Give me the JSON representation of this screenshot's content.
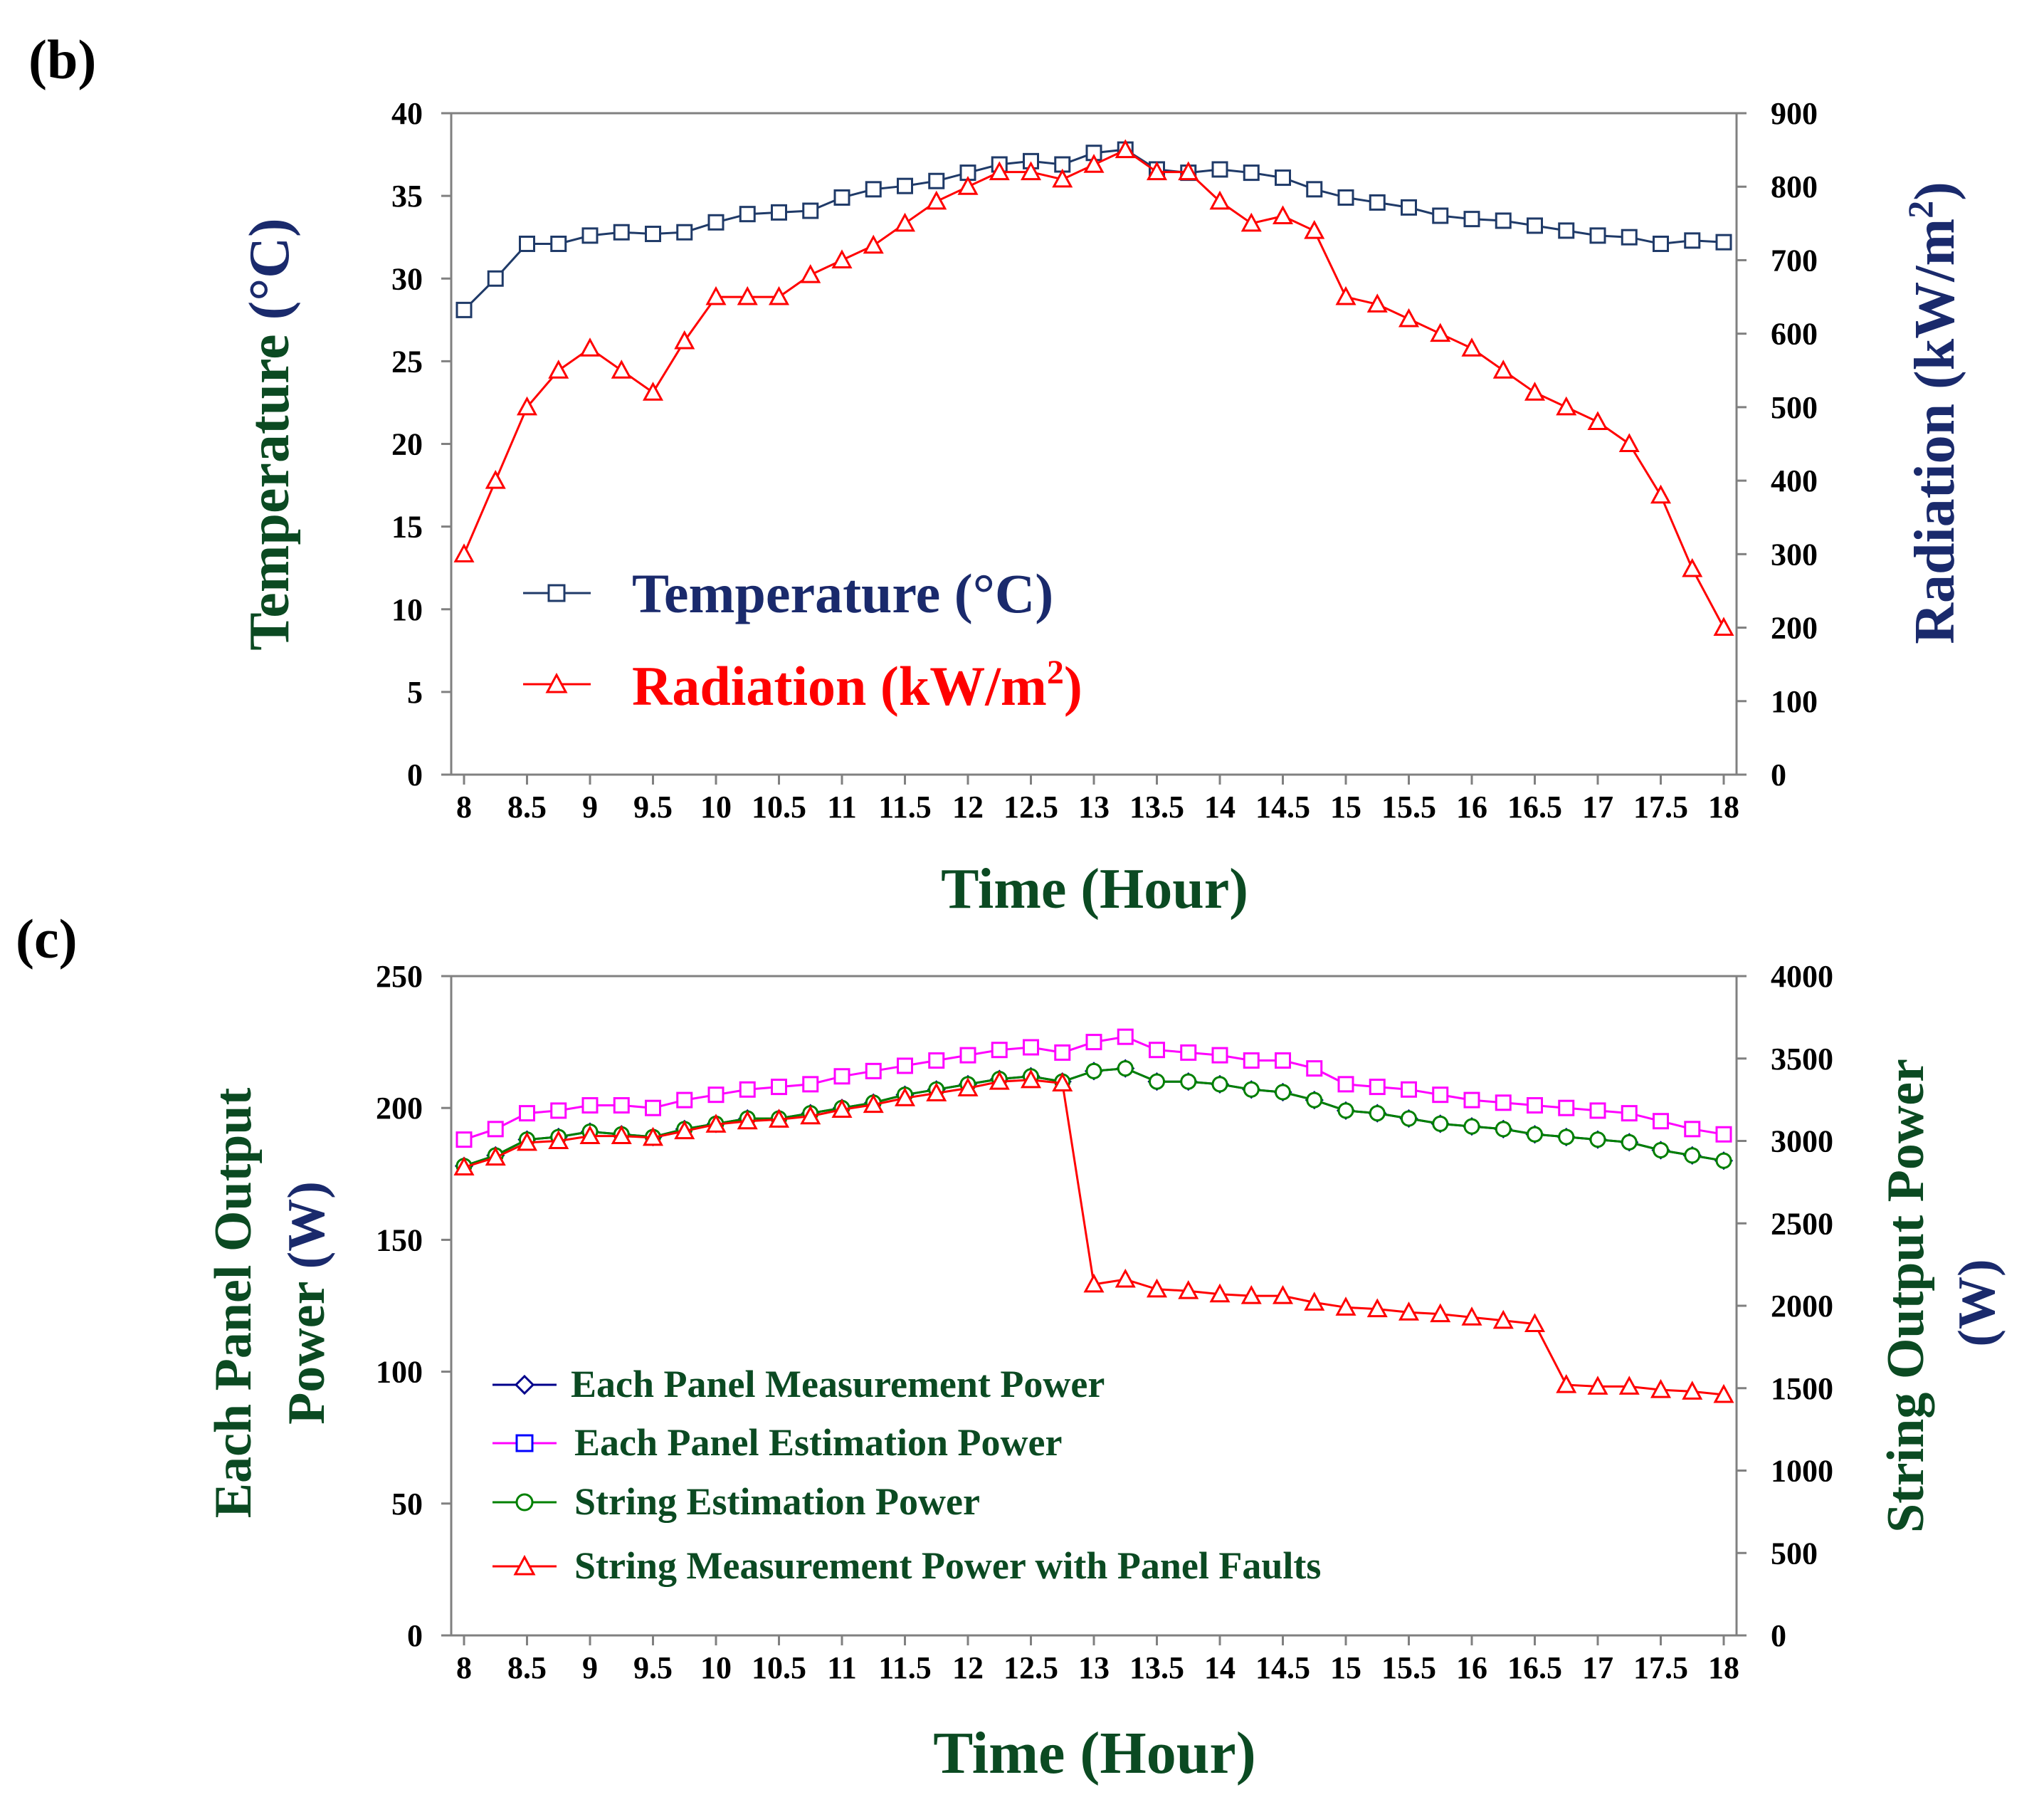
{
  "figure": {
    "colors": {
      "dark_green": "#0b4a22",
      "navy": "#1a2a6c",
      "red": "#ff0000",
      "magenta": "#ff00ff",
      "green": "#008000",
      "blue": "#00008b",
      "temp_navy": "#1f3a68"
    }
  },
  "chart_data": [
    {
      "panel_label": "(b)",
      "type": "line",
      "xlabel": "Time (Hour)",
      "x_tick_labels": [
        "8",
        "8.5",
        "9",
        "9.5",
        "10",
        "10.5",
        "11",
        "11.5",
        "12",
        "12.5",
        "13",
        "13.5",
        "14",
        "14.5",
        "15",
        "15.5",
        "16",
        "16.5",
        "17",
        "17.5",
        "18"
      ],
      "ylabel_left": "Temperature",
      "ylabel_left_unit": "(°C)",
      "ylabel_right": "Radiation",
      "ylabel_right_unit": "(kW/m",
      "ylabel_right_sup": "2",
      "ylabel_right_close": ")",
      "ylim_left": [
        0,
        40
      ],
      "yticks_left": [
        "0",
        "5",
        "10",
        "15",
        "20",
        "25",
        "30",
        "35",
        "40"
      ],
      "ylim_right": [
        0,
        900
      ],
      "yticks_right": [
        "0",
        "100",
        "200",
        "300",
        "400",
        "500",
        "600",
        "700",
        "800",
        "900"
      ],
      "legend": [
        {
          "name": "Temperature",
          "unit": "(°C)",
          "marker": "square",
          "color_key": "navy"
        },
        {
          "name": "Radiation",
          "unit": "(kW/m",
          "sup": "2",
          "close": ")",
          "marker": "triangle",
          "color_key": "red"
        }
      ],
      "series": [
        {
          "name": "Temperature (°C)",
          "axis": "left",
          "marker": "square",
          "color": "#1f3a68",
          "values": [
            28.1,
            30.0,
            32.1,
            32.1,
            32.6,
            32.8,
            32.7,
            32.8,
            33.4,
            33.9,
            34.0,
            34.1,
            34.9,
            35.4,
            35.6,
            35.9,
            36.4,
            36.9,
            37.1,
            36.9,
            37.6,
            37.8,
            36.6,
            36.4,
            36.6,
            36.4,
            36.1,
            35.4,
            34.9,
            34.6,
            34.3,
            33.8,
            33.6,
            33.5,
            33.2,
            32.9,
            32.6,
            32.5,
            32.1,
            32.3,
            32.2
          ]
        },
        {
          "name": "Radiation (kW/m2)",
          "axis": "right",
          "marker": "triangle",
          "color": "#ff0000",
          "values": [
            300,
            400,
            500,
            550,
            580,
            550,
            520,
            590,
            650,
            650,
            650,
            680,
            700,
            720,
            750,
            780,
            800,
            820,
            820,
            810,
            830,
            850,
            820,
            820,
            780,
            750,
            760,
            740,
            650,
            640,
            620,
            600,
            580,
            550,
            520,
            500,
            480,
            450,
            380,
            280,
            200
          ]
        }
      ]
    },
    {
      "panel_label": "(c)",
      "type": "line",
      "xlabel": "Time (Hour)",
      "x_tick_labels": [
        "8",
        "8.5",
        "9",
        "9.5",
        "10",
        "10.5",
        "11",
        "11.5",
        "12",
        "12.5",
        "13",
        "13.5",
        "14",
        "14.5",
        "15",
        "15.5",
        "16",
        "16.5",
        "17",
        "17.5",
        "18"
      ],
      "ylabel_left_line1": "Each Panel Output",
      "ylabel_left_line2a": "Power",
      "ylabel_left_line2b": "(W)",
      "ylabel_right_line1": "String Output Power",
      "ylabel_right_line2": "(W)",
      "ylim_left": [
        0,
        250
      ],
      "yticks_left": [
        "0",
        "50",
        "100",
        "150",
        "200",
        "250"
      ],
      "ylim_right": [
        0,
        4000
      ],
      "yticks_right": [
        "0",
        "500",
        "1000",
        "1500",
        "2000",
        "2500",
        "3000",
        "3500",
        "4000"
      ],
      "legend": [
        {
          "name": "Each Panel Measurement Power",
          "marker": "diamond",
          "color_key": "blue"
        },
        {
          "name": "Each Panel Estimation Power",
          "marker": "square",
          "color_key": "magenta"
        },
        {
          "name": "String Estimation Power",
          "marker": "circle",
          "color_key": "green"
        },
        {
          "name": "String Measurement Power with Panel Faults",
          "marker": "triangle",
          "color_key": "red"
        }
      ],
      "series": [
        {
          "name": "Each Panel Measurement Power",
          "axis": "left",
          "marker": "diamond",
          "color": "#00008b",
          "values": [
            178,
            182,
            188,
            189,
            191,
            190,
            189,
            192,
            194,
            196,
            196,
            198,
            200,
            202,
            205,
            207,
            209,
            211,
            212,
            210,
            214,
            215,
            210,
            210,
            209,
            207,
            206,
            203,
            199,
            198,
            196,
            194,
            193,
            192,
            190,
            189,
            188,
            187,
            184,
            182,
            180
          ]
        },
        {
          "name": "Each Panel Estimation Power",
          "axis": "left",
          "marker": "square",
          "color": "#ff00ff",
          "values": [
            188,
            192,
            198,
            199,
            201,
            201,
            200,
            203,
            205,
            207,
            208,
            209,
            212,
            214,
            216,
            218,
            220,
            222,
            223,
            221,
            225,
            227,
            222,
            221,
            220,
            218,
            218,
            215,
            209,
            208,
            207,
            205,
            203,
            202,
            201,
            200,
            199,
            198,
            195,
            192,
            190
          ]
        },
        {
          "name": "String Estimation Power",
          "axis": "left",
          "marker": "circle",
          "color": "#008000",
          "values": [
            178,
            182,
            188,
            189,
            191,
            190,
            189,
            192,
            194,
            196,
            196,
            198,
            200,
            202,
            205,
            207,
            209,
            211,
            212,
            210,
            214,
            215,
            210,
            210,
            209,
            207,
            206,
            203,
            199,
            198,
            196,
            194,
            193,
            192,
            190,
            189,
            188,
            187,
            184,
            182,
            180
          ]
        },
        {
          "name": "String Measurement Power with Panel Faults",
          "axis": "right",
          "marker": "triangle",
          "color": "#ff0000",
          "values": [
            2840,
            2900,
            2990,
            3000,
            3030,
            3030,
            3020,
            3060,
            3100,
            3120,
            3130,
            3150,
            3190,
            3220,
            3260,
            3290,
            3320,
            3360,
            3370,
            3350,
            2130,
            2160,
            2100,
            2090,
            2070,
            2060,
            2060,
            2020,
            1990,
            1980,
            1960,
            1950,
            1930,
            1910,
            1890,
            1520,
            1510,
            1510,
            1490,
            1480,
            1460
          ]
        }
      ]
    }
  ]
}
